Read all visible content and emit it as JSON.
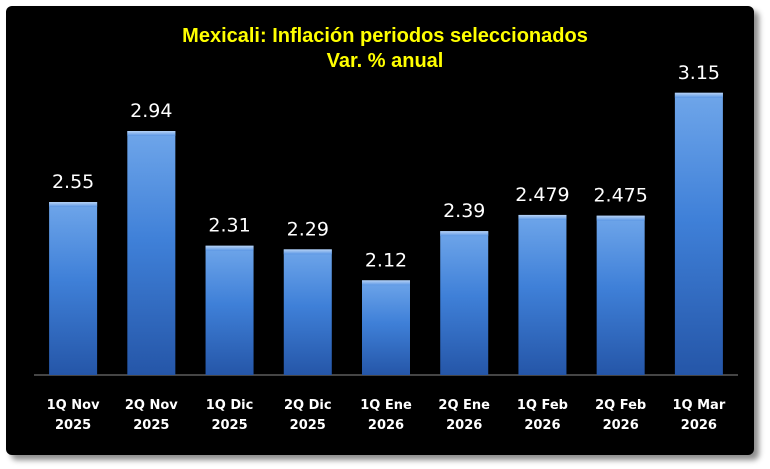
{
  "chart_data": {
    "type": "bar",
    "title": "Mexicali: Inflación periodos seleccionados",
    "subtitle": "Var. % anual",
    "categories": [
      [
        "1Q Nov",
        "2025"
      ],
      [
        "2Q Nov",
        "2025"
      ],
      [
        "1Q Dic",
        "2025"
      ],
      [
        "2Q Dic",
        "2025"
      ],
      [
        "1Q Ene",
        "2026"
      ],
      [
        "2Q Ene",
        "2026"
      ],
      [
        "1Q Feb",
        "2026"
      ],
      [
        "2Q Feb",
        "2026"
      ],
      [
        "1Q Mar",
        "2026"
      ]
    ],
    "values": [
      2.55,
      2.94,
      2.31,
      2.29,
      2.12,
      2.39,
      2.479,
      2.475,
      3.15
    ],
    "data_labels": [
      "2.55",
      "2.94",
      "2.31",
      "2.29",
      "2.12",
      "2.39",
      "2.479",
      "2.475",
      "3.15"
    ],
    "ylim": [
      1.6,
      3.33
    ],
    "grid": false,
    "legend": "none",
    "colors": {
      "background": "#000000",
      "bar_top": "#6fa6ea",
      "bar_mid": "#3f80d8",
      "bar_bottom": "#2556a8",
      "title": "#ffff00",
      "text": "#ffffff",
      "axis": "#8a8a8a"
    }
  }
}
